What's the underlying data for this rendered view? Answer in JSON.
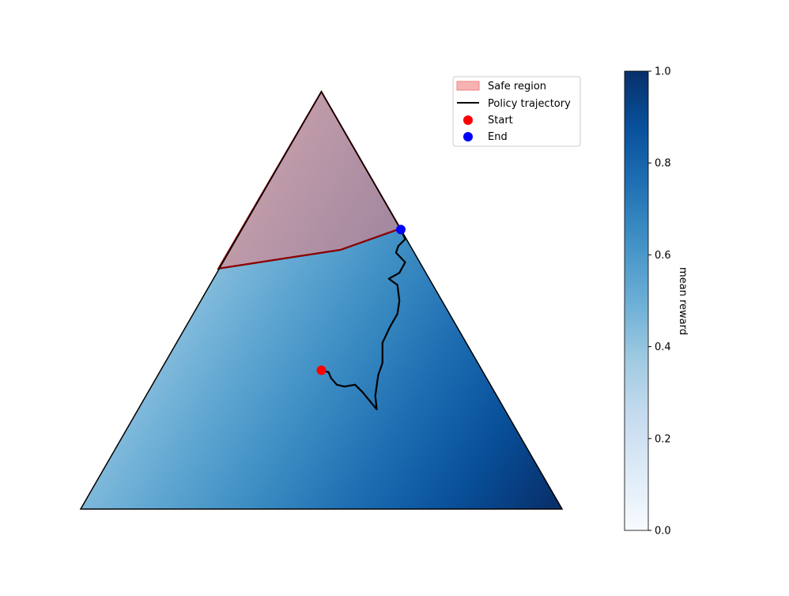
{
  "chart_data": {
    "type": "scatter",
    "title": "",
    "coordinate_system": "simplex (ternary), x = horizontal position, y = height; bottom-left vertex (0,0), bottom-right vertex (1,0), top vertex (0.5, 0.866)",
    "xlim": [
      0,
      1
    ],
    "ylim": [
      0,
      0.866
    ],
    "grid": false,
    "axes_visible": false,
    "heatmap": {
      "description": "mean reward over simplex, increasing toward bottom-right vertex",
      "colormap": "Blues",
      "vertex_values": {
        "top": 0.42,
        "left": 0.62,
        "right": 1.0
      }
    },
    "colorbar": {
      "label": "mean reward",
      "range": [
        0.0,
        1.0
      ],
      "ticks": [
        "0.0",
        "0.2",
        "0.4",
        "0.6",
        "0.8",
        "1.0"
      ],
      "tick_values": [
        0.0,
        0.2,
        0.4,
        0.6,
        0.8,
        1.0
      ],
      "colors": [
        "#f7fbff",
        "#deebf7",
        "#c6dbef",
        "#9ecae1",
        "#6baed6",
        "#4292c6",
        "#2171b5",
        "#08519c",
        "#08306b"
      ]
    },
    "safe_region": {
      "name": "Safe region",
      "color": "#f28080",
      "edge_color": "#8b0000",
      "polygon": [
        [
          0.5,
          0.866
        ],
        [
          0.286,
          0.499
        ],
        [
          0.54,
          0.538
        ],
        [
          0.664,
          0.582
        ]
      ]
    },
    "series": [
      {
        "name": "Policy trajectory",
        "type": "line",
        "color": "#000000",
        "points": [
          [
            0.5,
            0.288
          ],
          [
            0.515,
            0.284
          ],
          [
            0.52,
            0.272
          ],
          [
            0.532,
            0.258
          ],
          [
            0.548,
            0.254
          ],
          [
            0.57,
            0.258
          ],
          [
            0.585,
            0.243
          ],
          [
            0.615,
            0.207
          ],
          [
            0.612,
            0.235
          ],
          [
            0.618,
            0.278
          ],
          [
            0.627,
            0.303
          ],
          [
            0.627,
            0.345
          ],
          [
            0.642,
            0.377
          ],
          [
            0.658,
            0.405
          ],
          [
            0.662,
            0.432
          ],
          [
            0.658,
            0.465
          ],
          [
            0.64,
            0.478
          ],
          [
            0.662,
            0.49
          ],
          [
            0.674,
            0.512
          ],
          [
            0.655,
            0.532
          ],
          [
            0.66,
            0.546
          ],
          [
            0.674,
            0.56
          ],
          [
            0.665,
            0.58
          ]
        ]
      },
      {
        "name": "Start",
        "type": "point",
        "color": "#ff0000",
        "x": 0.5,
        "y": 0.288
      },
      {
        "name": "End",
        "type": "point",
        "color": "#0000ff",
        "x": 0.665,
        "y": 0.58
      }
    ],
    "legend": {
      "placement": "top-right",
      "entries": [
        "Safe region",
        "Policy trajectory",
        "Start",
        "End"
      ]
    }
  }
}
